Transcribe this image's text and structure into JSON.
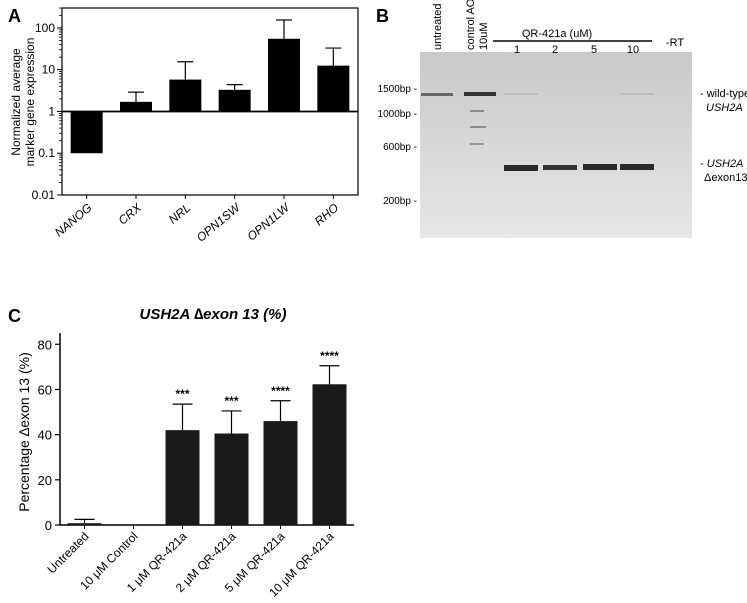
{
  "panels": {
    "a": {
      "letter": "A"
    },
    "b": {
      "letter": "B"
    },
    "c": {
      "letter": "C"
    }
  },
  "gel": {
    "lane_labels": [
      "untreated",
      "control AON",
      "10uM"
    ],
    "group_label": "QR-421a (uM)",
    "conc_labels": [
      "1",
      "2",
      "5",
      "10"
    ],
    "rt_label": "-RT",
    "ladder": [
      "1500bp -",
      "1000bp -",
      "600bp -",
      "200bp -"
    ],
    "wt_label_1": "- wild-type",
    "wt_label_2": "USH2A",
    "skip_label_1": "- USH2A",
    "skip_label_2": "Δexon13"
  },
  "chart_data": [
    {
      "type": "bar",
      "ylabel": "Normalized average marker gene expression",
      "ylabel_lines": [
        "Normalized average",
        "marker gene expression"
      ],
      "yscale": "log",
      "ylim": [
        0.01,
        300
      ],
      "yticks": [
        "0.01",
        "0.1",
        "1",
        "10",
        "100"
      ],
      "baseline": 1,
      "categories": [
        "NANOG",
        "CRX",
        "NRL",
        "OPN1SW",
        "OPN1LW",
        "RHO"
      ],
      "values": [
        0.1,
        1.7,
        5.8,
        3.3,
        55,
        12.5
      ],
      "error_upper": [
        0.1,
        2.9,
        15.5,
        4.4,
        155,
        33
      ]
    },
    {
      "type": "bar",
      "title": "USH2A ∆exon 13 (%)",
      "ylabel": "Percentage ∆exon 13 (%)",
      "ylim": [
        0,
        85
      ],
      "yticks": [
        "0",
        "20",
        "40",
        "60",
        "80"
      ],
      "categories": [
        "Untreated",
        "10 μM Control",
        "1 μM QR-421a",
        "2 μM QR-421a",
        "5 μM QR-421a",
        "10 μM QR-421a"
      ],
      "values": [
        0.8,
        0,
        42,
        40.5,
        46,
        62.3
      ],
      "error_upper": [
        2.5,
        0,
        53.5,
        50.5,
        55,
        70.5
      ],
      "significance": [
        "",
        "",
        "***",
        "***",
        "****",
        "****"
      ]
    }
  ]
}
